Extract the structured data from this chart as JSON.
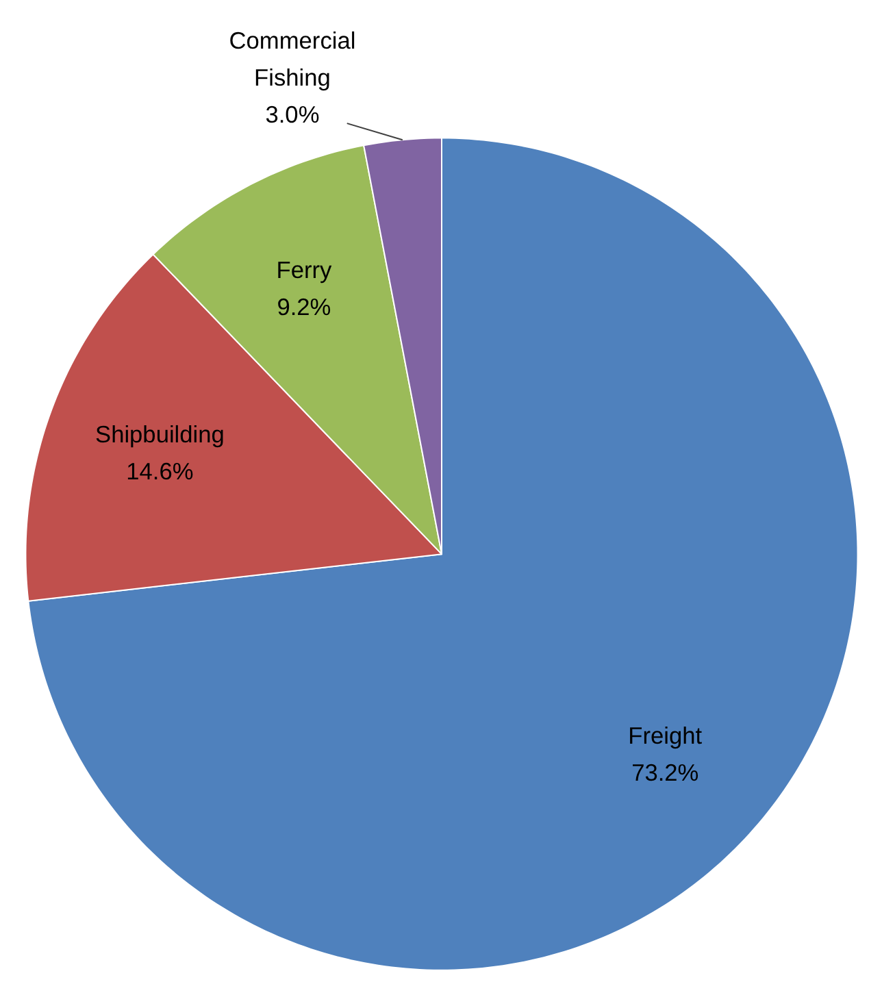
{
  "chart_data": {
    "type": "pie",
    "categories": [
      "Freight",
      "Shipbuilding",
      "Ferry",
      "Commercial Fishing"
    ],
    "values": [
      73.2,
      14.6,
      9.2,
      3.0
    ],
    "value_labels": [
      "73.2%",
      "14.6%",
      "9.2%",
      "3.0%"
    ],
    "colors": [
      "#4f81bd",
      "#c0504d",
      "#9bbb59",
      "#8064a2"
    ],
    "legend": false
  }
}
